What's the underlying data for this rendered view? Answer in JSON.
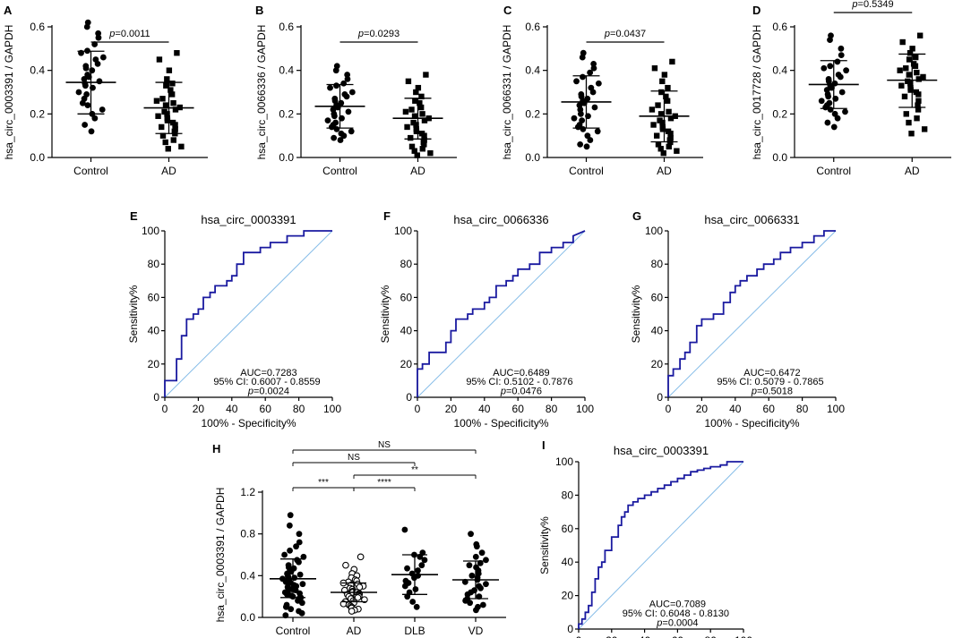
{
  "colors": {
    "roc": "#1a1aa0",
    "diag": "#87bde8",
    "axis": "#000000",
    "point": "#000000"
  },
  "chart_data": [
    {
      "type": "scatter",
      "panel": "A",
      "ylabel": "hsa_circ_0003391 / GAPDH",
      "categories": [
        "Control",
        "AD"
      ],
      "ylim": [
        0,
        0.6
      ],
      "yticks": [
        "0.0",
        "0.2",
        "0.4",
        "0.6"
      ],
      "ytick_values": [
        0,
        0.2,
        0.4,
        0.6
      ],
      "pvalue": {
        "prefix": "p",
        "text": "=0.0011"
      },
      "groups": [
        {
          "name": "Control",
          "marker": "circle",
          "mean": 0.345,
          "sd_low": 0.2,
          "sd_high": 0.488,
          "values": [
            0.62,
            0.6,
            0.57,
            0.55,
            0.52,
            0.49,
            0.48,
            0.46,
            0.45,
            0.43,
            0.42,
            0.41,
            0.4,
            0.38,
            0.37,
            0.36,
            0.35,
            0.34,
            0.33,
            0.32,
            0.3,
            0.29,
            0.27,
            0.25,
            0.24,
            0.22,
            0.2,
            0.18,
            0.15,
            0.12
          ]
        },
        {
          "name": "AD",
          "marker": "square",
          "mean": 0.228,
          "sd_low": 0.11,
          "sd_high": 0.345,
          "values": [
            0.48,
            0.45,
            0.4,
            0.36,
            0.34,
            0.33,
            0.31,
            0.29,
            0.27,
            0.26,
            0.25,
            0.24,
            0.23,
            0.22,
            0.21,
            0.2,
            0.19,
            0.18,
            0.17,
            0.16,
            0.15,
            0.14,
            0.13,
            0.12,
            0.11,
            0.1,
            0.08,
            0.07,
            0.05,
            0.04
          ]
        }
      ]
    },
    {
      "type": "scatter",
      "panel": "B",
      "ylabel": "hsa_circ_0066336 / GAPDH",
      "categories": [
        "Control",
        "AD"
      ],
      "ylim": [
        0,
        0.6
      ],
      "yticks": [
        "0.0",
        "0.2",
        "0.4",
        "0.6"
      ],
      "ytick_values": [
        0,
        0.2,
        0.4,
        0.6
      ],
      "pvalue": {
        "prefix": "p",
        "text": "=0.0293"
      },
      "groups": [
        {
          "name": "Control",
          "marker": "circle",
          "mean": 0.235,
          "sd_low": 0.135,
          "sd_high": 0.335,
          "values": [
            0.42,
            0.4,
            0.38,
            0.36,
            0.34,
            0.33,
            0.32,
            0.3,
            0.29,
            0.28,
            0.27,
            0.26,
            0.25,
            0.24,
            0.23,
            0.22,
            0.21,
            0.2,
            0.19,
            0.18,
            0.17,
            0.16,
            0.15,
            0.14,
            0.13,
            0.12,
            0.11,
            0.1,
            0.09,
            0.08
          ]
        },
        {
          "name": "AD",
          "marker": "square",
          "mean": 0.18,
          "sd_low": 0.085,
          "sd_high": 0.272,
          "values": [
            0.38,
            0.35,
            0.32,
            0.3,
            0.28,
            0.26,
            0.25,
            0.23,
            0.22,
            0.21,
            0.2,
            0.19,
            0.18,
            0.17,
            0.16,
            0.15,
            0.14,
            0.13,
            0.12,
            0.11,
            0.1,
            0.09,
            0.08,
            0.07,
            0.06,
            0.05,
            0.04,
            0.03,
            0.02,
            0.01
          ]
        }
      ]
    },
    {
      "type": "scatter",
      "panel": "C",
      "ylabel": "hsa_circ_0066331 / GAPDH",
      "categories": [
        "Control",
        "AD"
      ],
      "ylim": [
        0,
        0.6
      ],
      "yticks": [
        "0.0",
        "0.2",
        "0.4",
        "0.6"
      ],
      "ytick_values": [
        0,
        0.2,
        0.4,
        0.6
      ],
      "pvalue": {
        "prefix": "p",
        "text": "=0.0437"
      },
      "groups": [
        {
          "name": "Control",
          "marker": "circle",
          "mean": 0.255,
          "sd_low": 0.135,
          "sd_high": 0.375,
          "values": [
            0.48,
            0.46,
            0.43,
            0.41,
            0.39,
            0.37,
            0.35,
            0.34,
            0.32,
            0.3,
            0.29,
            0.28,
            0.27,
            0.26,
            0.25,
            0.24,
            0.23,
            0.22,
            0.2,
            0.19,
            0.18,
            0.17,
            0.15,
            0.14,
            0.13,
            0.12,
            0.1,
            0.08,
            0.06,
            0.05
          ]
        },
        {
          "name": "AD",
          "marker": "square",
          "mean": 0.19,
          "sd_low": 0.072,
          "sd_high": 0.305,
          "values": [
            0.44,
            0.41,
            0.38,
            0.35,
            0.32,
            0.3,
            0.28,
            0.26,
            0.24,
            0.22,
            0.21,
            0.2,
            0.19,
            0.18,
            0.17,
            0.16,
            0.15,
            0.14,
            0.13,
            0.12,
            0.11,
            0.1,
            0.09,
            0.08,
            0.07,
            0.06,
            0.05,
            0.04,
            0.03,
            0.02
          ]
        }
      ]
    },
    {
      "type": "scatter",
      "panel": "D",
      "ylabel": "hsa_circ_0017728 / GAPDH",
      "categories": [
        "Control",
        "AD"
      ],
      "ylim": [
        0,
        0.6
      ],
      "yticks": [
        "0.0",
        "0.2",
        "0.4",
        "0.6"
      ],
      "ytick_values": [
        0,
        0.2,
        0.4,
        0.6
      ],
      "pvalue": {
        "prefix": "p",
        "text": "=0.5349"
      },
      "groups": [
        {
          "name": "Control",
          "marker": "circle",
          "mean": 0.335,
          "sd_low": 0.225,
          "sd_high": 0.445,
          "values": [
            0.56,
            0.54,
            0.5,
            0.47,
            0.44,
            0.42,
            0.41,
            0.4,
            0.38,
            0.37,
            0.36,
            0.35,
            0.34,
            0.33,
            0.32,
            0.31,
            0.3,
            0.29,
            0.28,
            0.27,
            0.26,
            0.25,
            0.24,
            0.23,
            0.22,
            0.21,
            0.2,
            0.18,
            0.16,
            0.14
          ]
        },
        {
          "name": "AD",
          "marker": "square",
          "mean": 0.355,
          "sd_low": 0.23,
          "sd_high": 0.475,
          "values": [
            0.56,
            0.53,
            0.5,
            0.48,
            0.46,
            0.45,
            0.43,
            0.42,
            0.41,
            0.4,
            0.39,
            0.38,
            0.37,
            0.36,
            0.35,
            0.34,
            0.33,
            0.32,
            0.31,
            0.3,
            0.29,
            0.28,
            0.26,
            0.24,
            0.22,
            0.2,
            0.18,
            0.16,
            0.13,
            0.11
          ]
        }
      ]
    },
    {
      "type": "line",
      "panel": "E",
      "title": "hsa_circ_0003391",
      "xlabel": "100% - Specificity%",
      "ylabel": "Sensitivity%",
      "xlim": [
        0,
        100
      ],
      "ylim": [
        0,
        100
      ],
      "ticks": [
        "0",
        "20",
        "40",
        "60",
        "80",
        "100"
      ],
      "tick_values": [
        0,
        20,
        40,
        60,
        80,
        100
      ],
      "auc": "AUC=0.7283",
      "ci": "95% CI: 0.6007 - 0.8559",
      "pvalue": {
        "prefix": "p",
        "text": "=0.0024"
      },
      "x": [
        0,
        0,
        7,
        7,
        10,
        10,
        13,
        13,
        17,
        17,
        20,
        20,
        23,
        23,
        27,
        27,
        30,
        30,
        37,
        37,
        40,
        40,
        43,
        43,
        47,
        47,
        57,
        57,
        63,
        63,
        73,
        73,
        77,
        77,
        83,
        83,
        100
      ],
      "y": [
        0,
        10,
        10,
        23,
        23,
        37,
        37,
        47,
        47,
        50,
        50,
        53,
        53,
        60,
        60,
        63,
        63,
        67,
        67,
        70,
        70,
        73,
        73,
        80,
        80,
        87,
        87,
        90,
        90,
        93,
        93,
        97,
        97,
        97,
        97,
        100,
        100
      ]
    },
    {
      "type": "line",
      "panel": "F",
      "title": "hsa_circ_0066336",
      "xlabel": "100% - Specificity%",
      "ylabel": "Sensitivity%",
      "xlim": [
        0,
        100
      ],
      "ylim": [
        0,
        100
      ],
      "ticks": [
        "0",
        "20",
        "40",
        "60",
        "80",
        "100"
      ],
      "tick_values": [
        0,
        20,
        40,
        60,
        80,
        100
      ],
      "auc": "AUC=0.6489",
      "ci": "95% CI: 0.5102 - 0.7876",
      "pvalue": {
        "prefix": "p",
        "text": "=0.0476"
      },
      "x": [
        0,
        0,
        3,
        3,
        7,
        7,
        17,
        17,
        20,
        20,
        23,
        23,
        30,
        30,
        33,
        33,
        40,
        40,
        43,
        43,
        47,
        47,
        53,
        53,
        57,
        57,
        60,
        60,
        67,
        67,
        73,
        73,
        80,
        80,
        87,
        87,
        93,
        93,
        100
      ],
      "y": [
        0,
        17,
        17,
        20,
        20,
        27,
        27,
        33,
        33,
        40,
        40,
        47,
        47,
        50,
        50,
        53,
        53,
        57,
        57,
        60,
        60,
        67,
        67,
        70,
        70,
        73,
        73,
        77,
        77,
        80,
        80,
        87,
        87,
        90,
        90,
        93,
        93,
        97,
        100
      ]
    },
    {
      "type": "line",
      "panel": "G",
      "title": "hsa_circ_0066331",
      "xlabel": "100% - Specificity%",
      "ylabel": "Sensitivity%",
      "xlim": [
        0,
        100
      ],
      "ylim": [
        0,
        100
      ],
      "ticks": [
        "0",
        "20",
        "40",
        "60",
        "80",
        "100"
      ],
      "tick_values": [
        0,
        20,
        40,
        60,
        80,
        100
      ],
      "auc": "AUC=0.6472",
      "ci": "95% CI: 0.5079 - 0.7865",
      "pvalue": {
        "prefix": "p",
        "text": "=0.5018"
      },
      "x": [
        0,
        0,
        3,
        3,
        7,
        7,
        10,
        10,
        13,
        13,
        17,
        17,
        20,
        20,
        27,
        27,
        33,
        33,
        37,
        37,
        40,
        40,
        43,
        43,
        47,
        47,
        53,
        53,
        57,
        57,
        63,
        63,
        67,
        67,
        73,
        73,
        80,
        80,
        87,
        87,
        93,
        93,
        100
      ],
      "y": [
        0,
        13,
        13,
        17,
        17,
        23,
        23,
        27,
        27,
        33,
        33,
        43,
        43,
        47,
        47,
        50,
        50,
        57,
        57,
        63,
        63,
        67,
        67,
        70,
        70,
        73,
        73,
        77,
        77,
        80,
        80,
        83,
        83,
        87,
        87,
        90,
        90,
        93,
        93,
        97,
        97,
        100,
        100
      ]
    },
    {
      "type": "scatter",
      "panel": "H",
      "ylabel": "hsa_circ_0003391 / GAPDH",
      "categories": [
        "Control",
        "AD",
        "DLB",
        "VD"
      ],
      "ylim": [
        0,
        1.2
      ],
      "yticks": [
        "0.0",
        "0.4",
        "0.8",
        "1.2"
      ],
      "ytick_values": [
        0,
        0.4,
        0.8,
        1.2
      ],
      "groups": [
        {
          "name": "Control",
          "marker": "circle",
          "mean": 0.37,
          "sd_low": 0.19,
          "sd_high": 0.56,
          "values": [
            0.98,
            0.88,
            0.8,
            0.72,
            0.68,
            0.64,
            0.6,
            0.58,
            0.55,
            0.53,
            0.5,
            0.48,
            0.47,
            0.45,
            0.44,
            0.42,
            0.41,
            0.4,
            0.39,
            0.38,
            0.37,
            0.36,
            0.35,
            0.34,
            0.33,
            0.32,
            0.31,
            0.3,
            0.29,
            0.28,
            0.27,
            0.26,
            0.25,
            0.24,
            0.23,
            0.22,
            0.21,
            0.2,
            0.19,
            0.18,
            0.16,
            0.14,
            0.12,
            0.1,
            0.08,
            0.06,
            0.04,
            0.02
          ]
        },
        {
          "name": "AD",
          "marker": "open-circle",
          "mean": 0.24,
          "sd_low": 0.15,
          "sd_high": 0.33,
          "values": [
            0.58,
            0.5,
            0.46,
            0.42,
            0.4,
            0.38,
            0.36,
            0.35,
            0.34,
            0.33,
            0.32,
            0.31,
            0.3,
            0.29,
            0.28,
            0.27,
            0.26,
            0.25,
            0.24,
            0.24,
            0.23,
            0.22,
            0.22,
            0.21,
            0.2,
            0.2,
            0.19,
            0.18,
            0.17,
            0.16,
            0.15,
            0.14,
            0.13,
            0.12,
            0.11,
            0.1,
            0.09,
            0.08,
            0.07,
            0.06
          ]
        },
        {
          "name": "DLB",
          "marker": "circle",
          "mean": 0.41,
          "sd_low": 0.22,
          "sd_high": 0.6,
          "values": [
            0.84,
            0.62,
            0.6,
            0.58,
            0.55,
            0.5,
            0.47,
            0.45,
            0.42,
            0.4,
            0.38,
            0.35,
            0.33,
            0.3,
            0.27,
            0.24,
            0.2,
            0.15,
            0.1
          ]
        },
        {
          "name": "VD",
          "marker": "circle",
          "mean": 0.36,
          "sd_low": 0.18,
          "sd_high": 0.54,
          "values": [
            0.8,
            0.7,
            0.68,
            0.62,
            0.58,
            0.55,
            0.52,
            0.5,
            0.48,
            0.45,
            0.42,
            0.4,
            0.38,
            0.36,
            0.34,
            0.32,
            0.3,
            0.28,
            0.26,
            0.24,
            0.22,
            0.2,
            0.18,
            0.16,
            0.14,
            0.12,
            0.1,
            0.07
          ]
        }
      ],
      "brackets": [
        {
          "from": 0,
          "to": 3,
          "label": "NS",
          "level": 3
        },
        {
          "from": 0,
          "to": 2,
          "label": "NS",
          "level": 2
        },
        {
          "from": 1,
          "to": 3,
          "label": "**",
          "level": 1
        },
        {
          "from": 0,
          "to": 1,
          "label": "***",
          "level": 0
        },
        {
          "from": 1,
          "to": 2,
          "label": "****",
          "level": 0
        }
      ]
    },
    {
      "type": "line",
      "panel": "I",
      "title": "hsa_circ_0003391",
      "xlabel": "",
      "ylabel": "Sensitivity%",
      "xlim": [
        0,
        100
      ],
      "ylim": [
        0,
        100
      ],
      "ticks": [
        "0",
        "20",
        "40",
        "60",
        "80",
        "100"
      ],
      "tick_values": [
        0,
        20,
        40,
        60,
        80,
        100
      ],
      "auc": "AUC=0.7089",
      "ci": "95% CI: 0.6048 - 0.8130",
      "pvalue": {
        "prefix": "p",
        "text": "=0.0004"
      },
      "x": [
        0,
        0,
        2,
        2,
        4,
        4,
        6,
        6,
        8,
        8,
        10,
        10,
        12,
        12,
        14,
        14,
        16,
        16,
        20,
        20,
        24,
        24,
        26,
        26,
        28,
        28,
        30,
        30,
        33,
        33,
        36,
        36,
        40,
        40,
        44,
        44,
        48,
        48,
        52,
        52,
        56,
        56,
        60,
        60,
        64,
        64,
        68,
        68,
        72,
        72,
        76,
        76,
        80,
        80,
        86,
        86,
        90,
        90,
        100
      ],
      "y": [
        0,
        3,
        3,
        6,
        6,
        10,
        10,
        14,
        14,
        22,
        22,
        30,
        30,
        37,
        37,
        40,
        40,
        47,
        47,
        55,
        55,
        62,
        62,
        67,
        67,
        70,
        70,
        74,
        74,
        76,
        76,
        78,
        78,
        80,
        80,
        82,
        82,
        84,
        84,
        86,
        86,
        88,
        88,
        90,
        90,
        92,
        92,
        94,
        94,
        95,
        95,
        96,
        96,
        97,
        97,
        98,
        98,
        100,
        100
      ]
    }
  ]
}
